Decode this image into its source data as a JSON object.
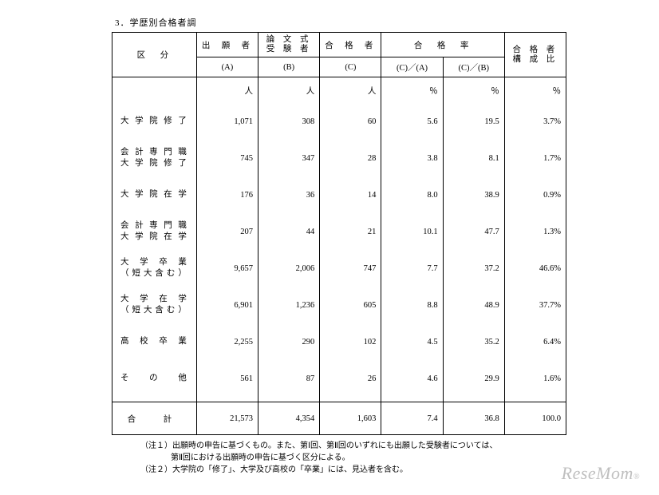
{
  "section_title": "3．学歴別合格者調",
  "headers": {
    "kubun": "区　分",
    "a_top": "出 願 者",
    "a_sub": "(A)",
    "b_top": "論 文 式\n受 験 者",
    "b_sub": "(B)",
    "c_top": "合 格 者",
    "c_sub": "(C)",
    "rate_span": "合　格　率",
    "ca": "(C)／(A)",
    "cb": "(C)／(B)",
    "ratio_top": "合 格 者\n構 成 比"
  },
  "units": {
    "person": "人",
    "pct": "％"
  },
  "rows": [
    {
      "label": "大学院修了",
      "a": "1,071",
      "b": "308",
      "c": "60",
      "ca": "5.6",
      "cb": "19.5",
      "r": "3.7%"
    },
    {
      "label": "会計専門職\n大学院修了",
      "a": "745",
      "b": "347",
      "c": "28",
      "ca": "3.8",
      "cb": "8.1",
      "r": "1.7%"
    },
    {
      "label": "大学院在学",
      "a": "176",
      "b": "36",
      "c": "14",
      "ca": "8.0",
      "cb": "38.9",
      "r": "0.9%"
    },
    {
      "label": "会計専門職\n大学院在学",
      "a": "207",
      "b": "44",
      "c": "21",
      "ca": "10.1",
      "cb": "47.7",
      "r": "1.3%"
    },
    {
      "label": "大 学 卒 業\n（短大含む）",
      "a": "9,657",
      "b": "2,006",
      "c": "747",
      "ca": "7.7",
      "cb": "37.2",
      "r": "46.6%"
    },
    {
      "label": "大 学 在 学\n（短大含む）",
      "a": "6,901",
      "b": "1,236",
      "c": "605",
      "ca": "8.8",
      "cb": "48.9",
      "r": "37.7%"
    },
    {
      "label": "高 校 卒 業",
      "a": "2,255",
      "b": "290",
      "c": "102",
      "ca": "4.5",
      "cb": "35.2",
      "r": "6.4%"
    },
    {
      "label": "そ　の　他",
      "a": "561",
      "b": "87",
      "c": "26",
      "ca": "4.6",
      "cb": "29.9",
      "r": "1.6%"
    }
  ],
  "total": {
    "label": "合　計",
    "a": "21,573",
    "b": "4,354",
    "c": "1,603",
    "ca": "7.4",
    "cb": "36.8",
    "r": "100.0"
  },
  "notes": {
    "n1a": "（注１）出願時の申告に基づくもの。また、第Ⅰ回、第Ⅱ回のいずれにも出願した受験者については、",
    "n1b": "第Ⅱ回における出願時の申告に基づく区分による。",
    "n2": "（注２）大学院の「修了」、大学及び高校の「卒業」には、見込者を含む。"
  },
  "watermark": "ReseMom"
}
